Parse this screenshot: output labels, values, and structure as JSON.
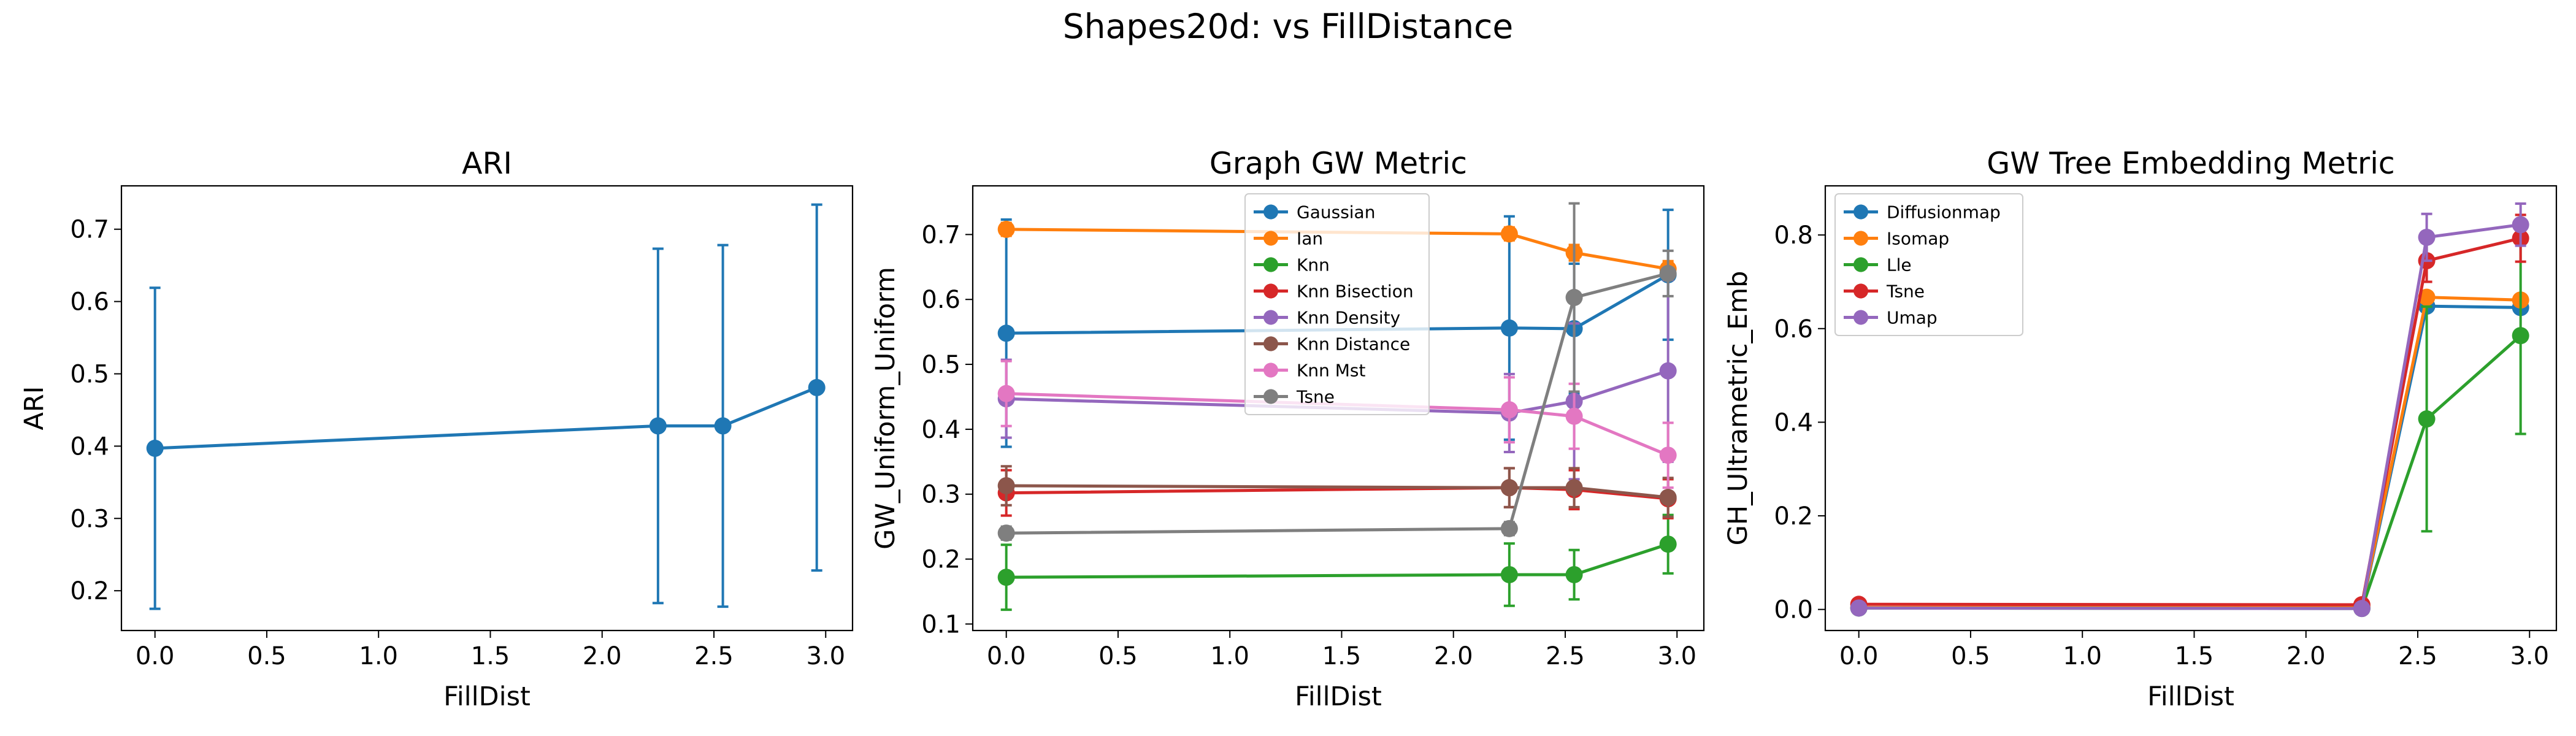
{
  "figure": {
    "suptitle": "Shapes20d: vs FillDistance"
  },
  "chart_data": [
    {
      "type": "line",
      "title": "ARI",
      "xlabel": "FillDist",
      "ylabel": "ARI",
      "xlim": [
        -0.15,
        3.12
      ],
      "ylim": [
        0.145,
        0.76
      ],
      "xticks": [
        "0.0",
        "0.5",
        "1.0",
        "1.5",
        "2.0",
        "2.5",
        "3.0"
      ],
      "yticks": [
        "0.2",
        "0.3",
        "0.4",
        "0.5",
        "0.6",
        "0.7"
      ],
      "legend": null,
      "series": [
        {
          "color": "#1f77b4",
          "x": [
            0.0,
            2.25,
            2.54,
            2.96
          ],
          "y": [
            0.397,
            0.428,
            0.428,
            0.481
          ],
          "err": [
            0.222,
            0.245,
            0.25,
            0.253
          ]
        }
      ]
    },
    {
      "type": "line",
      "title": "Graph GW Metric",
      "xlabel": "FillDist",
      "ylabel": "GW_Uniform_Uniform",
      "xlim": [
        -0.15,
        3.12
      ],
      "ylim": [
        0.09,
        0.775
      ],
      "xticks": [
        "0.0",
        "0.5",
        "1.0",
        "1.5",
        "2.0",
        "2.5",
        "3.0"
      ],
      "yticks": [
        "0.1",
        "0.2",
        "0.3",
        "0.4",
        "0.5",
        "0.6",
        "0.7"
      ],
      "legend": "upper-center",
      "series": [
        {
          "name": "Gaussian",
          "color": "#1f77b4",
          "x": [
            0.0,
            2.25,
            2.54,
            2.96
          ],
          "y": [
            0.548,
            0.556,
            0.555,
            0.638
          ],
          "err": [
            0.175,
            0.172,
            0.1,
            0.1
          ]
        },
        {
          "name": "Ian",
          "color": "#ff7f0e",
          "x": [
            0.0,
            2.25,
            2.54,
            2.96
          ],
          "y": [
            0.708,
            0.701,
            0.672,
            0.647
          ],
          "err": [
            0.01,
            0.01,
            0.012,
            0.012
          ]
        },
        {
          "name": "Knn",
          "color": "#2ca02c",
          "x": [
            0.0,
            2.25,
            2.54,
            2.96
          ],
          "y": [
            0.172,
            0.176,
            0.176,
            0.223
          ],
          "err": [
            0.05,
            0.048,
            0.038,
            0.045
          ]
        },
        {
          "name": "Knn Bisection",
          "color": "#d62728",
          "x": [
            0.0,
            2.25,
            2.54,
            2.96
          ],
          "y": [
            0.302,
            0.31,
            0.307,
            0.293
          ],
          "err": [
            0.035,
            0.03,
            0.03,
            0.03
          ]
        },
        {
          "name": "Knn Density",
          "color": "#9467bd",
          "x": [
            0.0,
            2.25,
            2.54,
            2.96
          ],
          "y": [
            0.447,
            0.425,
            0.443,
            0.49
          ],
          "err": [
            0.06,
            0.06,
            0.12,
            0.14
          ]
        },
        {
          "name": "Knn Distance",
          "color": "#8c564b",
          "x": [
            0.0,
            2.25,
            2.54,
            2.96
          ],
          "y": [
            0.313,
            0.31,
            0.31,
            0.295
          ],
          "err": [
            0.03,
            0.03,
            0.03,
            0.03
          ]
        },
        {
          "name": "Knn Mst",
          "color": "#e377c2",
          "x": [
            0.0,
            2.25,
            2.54,
            2.96
          ],
          "y": [
            0.455,
            0.43,
            0.42,
            0.36
          ],
          "err": [
            0.05,
            0.05,
            0.05,
            0.05
          ]
        },
        {
          "name": "Tsne",
          "color": "#7f7f7f",
          "x": [
            0.0,
            2.25,
            2.54,
            2.96
          ],
          "y": [
            0.24,
            0.247,
            0.603,
            0.64
          ],
          "err": [
            0.01,
            0.01,
            0.145,
            0.035
          ]
        }
      ]
    },
    {
      "type": "line",
      "title": "GW Tree Embedding Metric",
      "xlabel": "FillDist",
      "ylabel": "GH_Ultrametric_Emb",
      "xlim": [
        -0.15,
        3.12
      ],
      "ylim": [
        -0.045,
        0.905
      ],
      "xticks": [
        "0.0",
        "0.5",
        "1.0",
        "1.5",
        "2.0",
        "2.5",
        "3.0"
      ],
      "yticks": [
        "0.0",
        "0.2",
        "0.4",
        "0.6",
        "0.8"
      ],
      "legend": "upper-left",
      "series": [
        {
          "name": "Diffusionmap",
          "color": "#1f77b4",
          "x": [
            0.0,
            2.25,
            2.54,
            2.96
          ],
          "y": [
            0.003,
            0.003,
            0.648,
            0.645
          ],
          "err": [
            0.004,
            0.004,
            0.005,
            0.005
          ]
        },
        {
          "name": "Isomap",
          "color": "#ff7f0e",
          "x": [
            0.0,
            2.25,
            2.54,
            2.96
          ],
          "y": [
            0.004,
            0.006,
            0.667,
            0.661
          ],
          "err": [
            0.004,
            0.004,
            0.005,
            0.005
          ]
        },
        {
          "name": "Lle",
          "color": "#2ca02c",
          "x": [
            0.0,
            2.25,
            2.54,
            2.96
          ],
          "y": [
            0.003,
            0.002,
            0.407,
            0.585
          ],
          "err": [
            0.003,
            0.003,
            0.24,
            0.21
          ]
        },
        {
          "name": "Tsne",
          "color": "#d62728",
          "x": [
            0.0,
            2.25,
            2.54,
            2.96
          ],
          "y": [
            0.011,
            0.01,
            0.745,
            0.793
          ],
          "err": [
            0.005,
            0.005,
            0.045,
            0.05
          ]
        },
        {
          "name": "Umap",
          "color": "#9467bd",
          "x": [
            0.0,
            2.25,
            2.54,
            2.96
          ],
          "y": [
            0.003,
            0.002,
            0.795,
            0.822
          ],
          "err": [
            0.003,
            0.003,
            0.05,
            0.045
          ]
        }
      ]
    }
  ]
}
